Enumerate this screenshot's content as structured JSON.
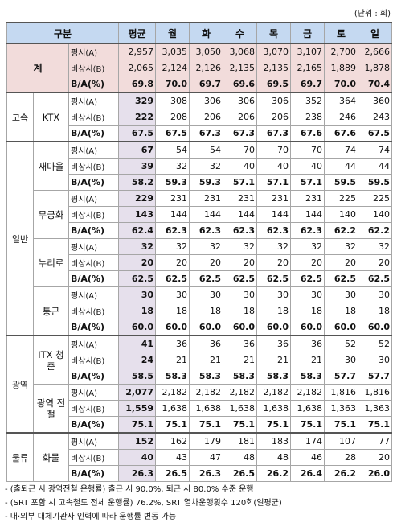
{
  "header": {
    "unit": "(단위 : 회)"
  },
  "table": {
    "columns": [
      "구분",
      "평균",
      "월",
      "화",
      "수",
      "목",
      "금",
      "토",
      "일"
    ],
    "sections": [
      {
        "label": "계",
        "rows": [
          {
            "label": "평시(A)",
            "values": [
              "2,957",
              "3,035",
              "3,050",
              "3,068",
              "3,070",
              "3,107",
              "2,700",
              "2,666"
            ]
          },
          {
            "label": "비상시(B)",
            "values": [
              "2,065",
              "2,124",
              "2,126",
              "2,135",
              "2,135",
              "2,165",
              "1,889",
              "1,878"
            ]
          },
          {
            "label": "B/A(%)",
            "values": [
              "69.8",
              "70.0",
              "69.7",
              "69.6",
              "69.5",
              "69.7",
              "70.0",
              "70.4"
            ]
          }
        ]
      },
      {
        "label": "고속",
        "items": [
          {
            "label": "KTX",
            "rows": [
              {
                "label": "평시(A)",
                "values": [
                  "329",
                  "308",
                  "306",
                  "306",
                  "306",
                  "352",
                  "364",
                  "360"
                ]
              },
              {
                "label": "비상시(B)",
                "values": [
                  "222",
                  "208",
                  "206",
                  "206",
                  "206",
                  "238",
                  "246",
                  "243"
                ]
              },
              {
                "label": "B/A(%)",
                "values": [
                  "67.5",
                  "67.5",
                  "67.3",
                  "67.3",
                  "67.3",
                  "67.6",
                  "67.6",
                  "67.5"
                ]
              }
            ]
          }
        ]
      },
      {
        "label": "일반",
        "items": [
          {
            "label": "새마을",
            "rows": [
              {
                "label": "평시(A)",
                "values": [
                  "67",
                  "54",
                  "54",
                  "70",
                  "70",
                  "70",
                  "74",
                  "74"
                ]
              },
              {
                "label": "비상시(B)",
                "values": [
                  "39",
                  "32",
                  "32",
                  "40",
                  "40",
                  "40",
                  "44",
                  "44"
                ]
              },
              {
                "label": "B/A(%)",
                "values": [
                  "58.2",
                  "59.3",
                  "59.3",
                  "57.1",
                  "57.1",
                  "57.1",
                  "59.5",
                  "59.5"
                ]
              }
            ]
          },
          {
            "label": "무궁화",
            "rows": [
              {
                "label": "평시(A)",
                "values": [
                  "229",
                  "231",
                  "231",
                  "231",
                  "231",
                  "231",
                  "225",
                  "225"
                ]
              },
              {
                "label": "비상시(B)",
                "values": [
                  "143",
                  "144",
                  "144",
                  "144",
                  "144",
                  "144",
                  "140",
                  "140"
                ]
              },
              {
                "label": "B/A(%)",
                "values": [
                  "62.4",
                  "62.3",
                  "62.3",
                  "62.3",
                  "62.3",
                  "62.3",
                  "62.2",
                  "62.2"
                ]
              }
            ]
          },
          {
            "label": "누리로",
            "rows": [
              {
                "label": "평시(A)",
                "values": [
                  "32",
                  "32",
                  "32",
                  "32",
                  "32",
                  "32",
                  "32",
                  "32"
                ]
              },
              {
                "label": "비상시(B)",
                "values": [
                  "20",
                  "20",
                  "20",
                  "20",
                  "20",
                  "20",
                  "20",
                  "20"
                ]
              },
              {
                "label": "B/A(%)",
                "values": [
                  "62.5",
                  "62.5",
                  "62.5",
                  "62.5",
                  "62.5",
                  "62.5",
                  "62.5",
                  "62.5"
                ]
              }
            ]
          },
          {
            "label": "통근",
            "rows": [
              {
                "label": "평시(A)",
                "values": [
                  "30",
                  "30",
                  "30",
                  "30",
                  "30",
                  "30",
                  "30",
                  "30"
                ]
              },
              {
                "label": "비상시(B)",
                "values": [
                  "18",
                  "18",
                  "18",
                  "18",
                  "18",
                  "18",
                  "18",
                  "18"
                ]
              },
              {
                "label": "B/A(%)",
                "values": [
                  "60.0",
                  "60.0",
                  "60.0",
                  "60.0",
                  "60.0",
                  "60.0",
                  "60.0",
                  "60.0"
                ]
              }
            ]
          }
        ]
      },
      {
        "label": "광역",
        "items": [
          {
            "label": "ITX 청춘",
            "rows": [
              {
                "label": "평시(A)",
                "values": [
                  "41",
                  "36",
                  "36",
                  "36",
                  "36",
                  "36",
                  "52",
                  "52"
                ]
              },
              {
                "label": "비상시(B)",
                "values": [
                  "24",
                  "21",
                  "21",
                  "21",
                  "21",
                  "21",
                  "30",
                  "30"
                ]
              },
              {
                "label": "B/A(%)",
                "values": [
                  "58.5",
                  "58.3",
                  "58.3",
                  "58.3",
                  "58.3",
                  "58.3",
                  "57.7",
                  "57.7"
                ]
              }
            ]
          },
          {
            "label": "광역 전철",
            "rows": [
              {
                "label": "평시(A)",
                "values": [
                  "2,077",
                  "2,182",
                  "2,182",
                  "2,182",
                  "2,182",
                  "2,182",
                  "1,816",
                  "1,816"
                ]
              },
              {
                "label": "비상시(B)",
                "values": [
                  "1,559",
                  "1,638",
                  "1,638",
                  "1,638",
                  "1,638",
                  "1,638",
                  "1,363",
                  "1,363"
                ]
              },
              {
                "label": "B/A(%)",
                "values": [
                  "75.1",
                  "75.1",
                  "75.1",
                  "75.1",
                  "75.1",
                  "75.1",
                  "75.1",
                  "75.1"
                ]
              }
            ]
          }
        ]
      },
      {
        "label": "물류",
        "items": [
          {
            "label": "화물",
            "rows": [
              {
                "label": "평시(A)",
                "values": [
                  "152",
                  "162",
                  "179",
                  "181",
                  "183",
                  "174",
                  "107",
                  "77"
                ]
              },
              {
                "label": "비상시(B)",
                "values": [
                  "40",
                  "43",
                  "47",
                  "48",
                  "48",
                  "46",
                  "28",
                  "20"
                ]
              },
              {
                "label": "B/A(%)",
                "values": [
                  "26.3",
                  "26.5",
                  "26.3",
                  "26.5",
                  "26.2",
                  "26.4",
                  "26.2",
                  "26.0"
                ]
              }
            ]
          }
        ]
      }
    ]
  },
  "notes": [
    "- (출퇴근 시 광역전철 운행률) 출근 시 90.0%, 퇴근 시 80.0% 수준 운행",
    "- (SRT 포함 시 고속철도 전체 운행률) 76.2%, SRT 열차운행횟수 120회(일평균)",
    "- 내·외부 대체기관사 인력에 따라 운행률 변동 가능"
  ]
}
